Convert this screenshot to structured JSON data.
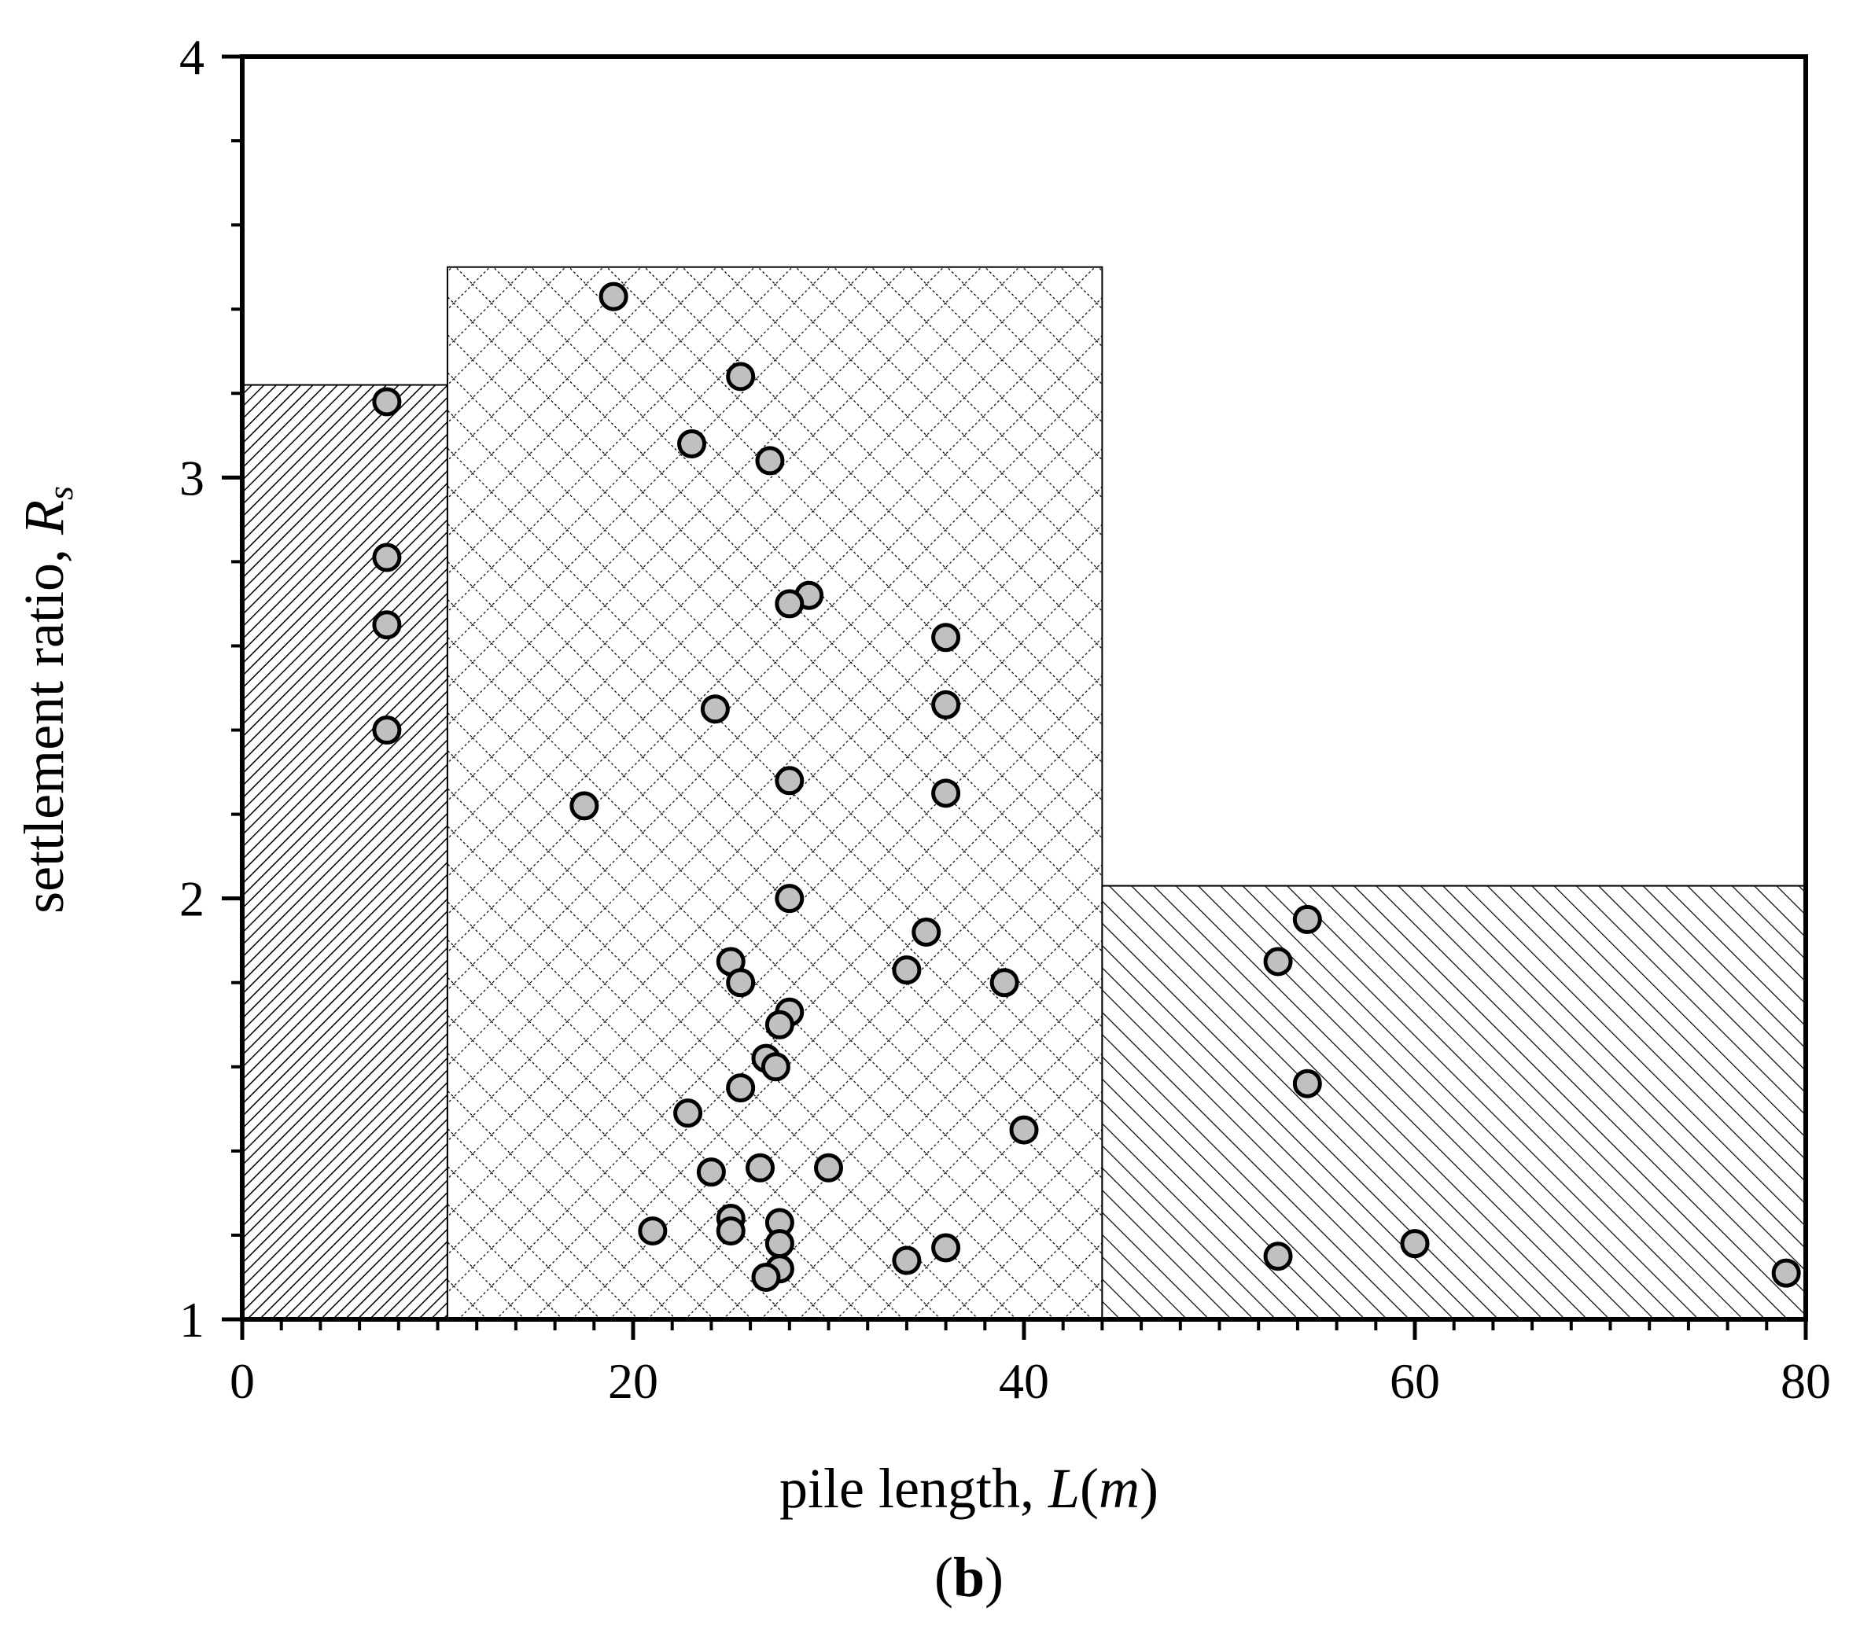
{
  "chart_data": {
    "type": "scatter",
    "panel_label": {
      "open": "(",
      "letter": "b",
      "close": ")"
    },
    "xlabel": {
      "text": "pile length, ",
      "var": "L",
      "paren_open": "(",
      "unit": "m",
      "paren_close": ")"
    },
    "ylabel": {
      "text": "settlement ratio, ",
      "var": "R",
      "sub": "s"
    },
    "xlim": [
      0,
      80
    ],
    "ylim": [
      1,
      4
    ],
    "x_ticks": [
      0,
      20,
      40,
      60,
      80
    ],
    "x_tick_labels": [
      "0",
      "20",
      "40",
      "60",
      "80"
    ],
    "y_ticks": [
      1,
      2,
      3,
      4
    ],
    "y_tick_labels": [
      "1",
      "2",
      "3",
      "4"
    ],
    "x_minor_step": 2,
    "y_minor_step": 0.2,
    "grid": false,
    "regions": [
      {
        "name": "range-short-piles",
        "x0": 0,
        "x1": 10.5,
        "y_top": 3.22,
        "pattern": "dense-diagonal"
      },
      {
        "name": "range-medium-piles",
        "x0": 10.5,
        "x1": 44,
        "y_top": 3.5,
        "pattern": "crosshatch"
      },
      {
        "name": "range-long-piles",
        "x0": 44,
        "x1": 80,
        "y_top": 2.03,
        "pattern": "wide-diagonal"
      }
    ],
    "points": [
      {
        "x": 7.4,
        "y": 3.18
      },
      {
        "x": 7.4,
        "y": 2.81
      },
      {
        "x": 7.4,
        "y": 2.65
      },
      {
        "x": 7.4,
        "y": 2.4
      },
      {
        "x": 19,
        "y": 3.43
      },
      {
        "x": 25.5,
        "y": 3.24
      },
      {
        "x": 23,
        "y": 3.08
      },
      {
        "x": 27,
        "y": 3.04
      },
      {
        "x": 29,
        "y": 2.72
      },
      {
        "x": 28,
        "y": 2.7
      },
      {
        "x": 36,
        "y": 2.62
      },
      {
        "x": 24.2,
        "y": 2.45
      },
      {
        "x": 36,
        "y": 2.46
      },
      {
        "x": 28,
        "y": 2.28
      },
      {
        "x": 36,
        "y": 2.25
      },
      {
        "x": 17.5,
        "y": 2.22
      },
      {
        "x": 28,
        "y": 2.0
      },
      {
        "x": 35,
        "y": 1.92
      },
      {
        "x": 25,
        "y": 1.85
      },
      {
        "x": 34,
        "y": 1.83
      },
      {
        "x": 25.5,
        "y": 1.8
      },
      {
        "x": 39,
        "y": 1.8
      },
      {
        "x": 28,
        "y": 1.73
      },
      {
        "x": 27.5,
        "y": 1.7
      },
      {
        "x": 26.8,
        "y": 1.62
      },
      {
        "x": 27.3,
        "y": 1.6
      },
      {
        "x": 25.5,
        "y": 1.55
      },
      {
        "x": 22.8,
        "y": 1.49
      },
      {
        "x": 40,
        "y": 1.45
      },
      {
        "x": 24,
        "y": 1.35
      },
      {
        "x": 26.5,
        "y": 1.36
      },
      {
        "x": 30,
        "y": 1.36
      },
      {
        "x": 25,
        "y": 1.24
      },
      {
        "x": 27.5,
        "y": 1.23
      },
      {
        "x": 21,
        "y": 1.21
      },
      {
        "x": 25,
        "y": 1.21
      },
      {
        "x": 27.5,
        "y": 1.18
      },
      {
        "x": 36,
        "y": 1.17
      },
      {
        "x": 34,
        "y": 1.14
      },
      {
        "x": 27.5,
        "y": 1.12
      },
      {
        "x": 26.8,
        "y": 1.1
      },
      {
        "x": 54.5,
        "y": 1.95
      },
      {
        "x": 53,
        "y": 1.85
      },
      {
        "x": 54.5,
        "y": 1.56
      },
      {
        "x": 53,
        "y": 1.15
      },
      {
        "x": 60,
        "y": 1.18
      },
      {
        "x": 79,
        "y": 1.11
      }
    ],
    "colors": {
      "marker_fill": "#c0c0c0",
      "marker_stroke": "#000000",
      "axis": "#000000",
      "hatch": "#000000"
    }
  }
}
